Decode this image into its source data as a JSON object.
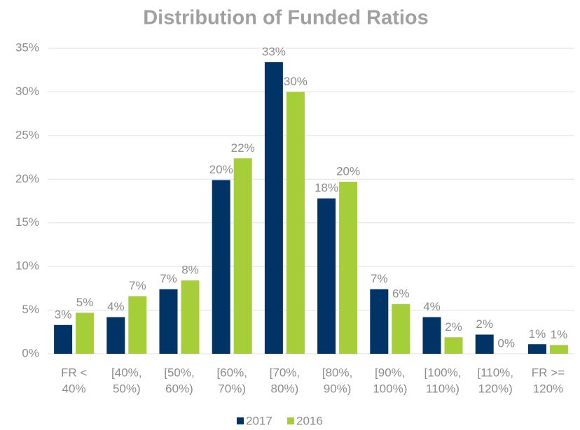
{
  "chart_data": {
    "type": "bar",
    "title": "Distribution of Funded Ratios",
    "categories": [
      [
        "FR <",
        "40%"
      ],
      [
        "[40%,",
        "50%)"
      ],
      [
        "[50%,",
        "60%)"
      ],
      [
        "[60%,",
        "70%)"
      ],
      [
        "[70%,",
        "80%)"
      ],
      [
        "[80%,",
        "90%)"
      ],
      [
        "[90%,",
        "100%)"
      ],
      [
        "[100%,",
        "110%)"
      ],
      [
        "[110%,",
        "120%)"
      ],
      [
        "FR >=",
        "120%"
      ]
    ],
    "series": [
      {
        "name": "2017",
        "color": "#003366",
        "values": [
          3.3,
          4.2,
          7.4,
          19.9,
          33.4,
          17.8,
          7.4,
          4.2,
          2.2,
          1.1
        ],
        "value_labels": [
          "3%",
          "4%",
          "7%",
          "20%",
          "33%",
          "18%",
          "7%",
          "4%",
          "2%",
          "1%"
        ]
      },
      {
        "name": "2016",
        "color": "#a6ce39",
        "values": [
          4.7,
          6.6,
          8.4,
          22.4,
          30.0,
          19.7,
          5.7,
          1.9,
          0,
          1.0
        ],
        "value_labels": [
          "5%",
          "7%",
          "8%",
          "22%",
          "30%",
          "20%",
          "6%",
          "2%",
          "0%",
          "1%"
        ]
      }
    ],
    "ylim": [
      0,
      35
    ],
    "yticks": [
      {
        "value": 0,
        "label": "0%"
      },
      {
        "value": 5,
        "label": "5%"
      },
      {
        "value": 10,
        "label": "10%"
      },
      {
        "value": 15,
        "label": "15%"
      },
      {
        "value": 20,
        "label": "20%"
      },
      {
        "value": 25,
        "label": "25%"
      },
      {
        "value": 30,
        "label": "30%"
      },
      {
        "value": 35,
        "label": "35%"
      }
    ],
    "grid": true,
    "legend": "bottom"
  }
}
